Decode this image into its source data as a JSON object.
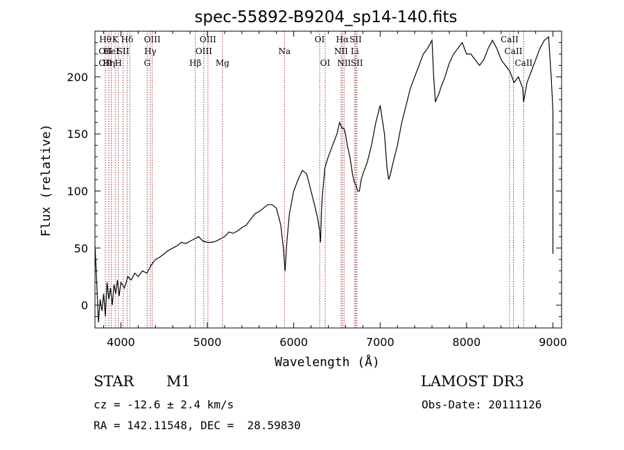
{
  "chart_data": {
    "type": "line",
    "title": "spec-55892-B9204_sp14-140.fits",
    "xlabel": "Wavelength (Å)",
    "ylabel": "Flux (relative)",
    "xlim": [
      3700,
      9100
    ],
    "ylim": [
      -20,
      240
    ],
    "xticks": [
      4000,
      5000,
      6000,
      7000,
      8000,
      9000
    ],
    "xtick_labels": [
      "4000",
      "5000",
      "6000",
      "7000",
      "8000",
      "9000"
    ],
    "yticks": [
      0,
      50,
      100,
      150,
      200
    ],
    "ytick_labels": [
      "0",
      "50",
      "100",
      "150",
      "200"
    ],
    "series": [
      {
        "name": "flux",
        "color": "#000000",
        "x": [
          3700,
          3720,
          3740,
          3760,
          3780,
          3800,
          3820,
          3840,
          3860,
          3880,
          3900,
          3920,
          3940,
          3960,
          3980,
          4000,
          4040,
          4080,
          4120,
          4160,
          4200,
          4250,
          4300,
          4350,
          4400,
          4450,
          4500,
          4550,
          4600,
          4650,
          4700,
          4750,
          4800,
          4850,
          4900,
          4950,
          5000,
          5050,
          5100,
          5150,
          5200,
          5250,
          5300,
          5350,
          5400,
          5450,
          5500,
          5550,
          5600,
          5650,
          5700,
          5750,
          5800,
          5850,
          5880,
          5900,
          5920,
          5950,
          6000,
          6050,
          6100,
          6150,
          6200,
          6250,
          6280,
          6300,
          6310,
          6320,
          6330,
          6360,
          6400,
          6450,
          6500,
          6530,
          6560,
          6580,
          6600,
          6620,
          6650,
          6680,
          6700,
          6720,
          6740,
          6760,
          6780,
          6800,
          6850,
          6900,
          6950,
          7000,
          7050,
          7080,
          7100,
          7120,
          7150,
          7200,
          7250,
          7300,
          7350,
          7400,
          7450,
          7500,
          7550,
          7600,
          7620,
          7640,
          7660,
          7680,
          7700,
          7750,
          7800,
          7850,
          7900,
          7950,
          8000,
          8050,
          8100,
          8150,
          8200,
          8250,
          8300,
          8350,
          8400,
          8450,
          8500,
          8550,
          8600,
          8650,
          8660,
          8700,
          8750,
          8800,
          8850,
          8900,
          8950,
          8980,
          9000,
          9000
        ],
        "y": [
          52,
          20,
          -15,
          5,
          -5,
          10,
          -10,
          20,
          5,
          15,
          0,
          18,
          10,
          22,
          8,
          20,
          15,
          25,
          22,
          28,
          25,
          30,
          28,
          35,
          40,
          42,
          45,
          48,
          50,
          52,
          55,
          54,
          56,
          58,
          60,
          56,
          55,
          55,
          56,
          58,
          60,
          64,
          63,
          65,
          68,
          70,
          75,
          80,
          82,
          85,
          88,
          88,
          85,
          70,
          50,
          30,
          55,
          80,
          100,
          110,
          118,
          115,
          100,
          85,
          75,
          65,
          55,
          80,
          95,
          120,
          130,
          140,
          150,
          160,
          155,
          155,
          150,
          140,
          130,
          115,
          108,
          105,
          100,
          100,
          110,
          115,
          125,
          140,
          160,
          175,
          150,
          120,
          110,
          115,
          125,
          140,
          160,
          175,
          190,
          200,
          210,
          220,
          225,
          232,
          200,
          178,
          182,
          185,
          190,
          200,
          212,
          220,
          225,
          230,
          220,
          220,
          215,
          210,
          215,
          225,
          232,
          225,
          215,
          210,
          205,
          195,
          200,
          190,
          178,
          195,
          205,
          215,
          225,
          232,
          235,
          200,
          170,
          45
        ]
      }
    ],
    "lines": [
      {
        "wavelength": 3820,
        "top": "Hθ",
        "mid": "OII",
        "low": "OII"
      },
      {
        "wavelength": 3860,
        "top": "",
        "mid": "",
        "low": "Hη"
      },
      {
        "wavelength": 3889,
        "top": "",
        "mid": "HeI",
        "low": ""
      },
      {
        "wavelength": 3934,
        "top": "K",
        "mid": "",
        "low": ""
      },
      {
        "wavelength": 3970,
        "top": "",
        "mid": "",
        "low": "H"
      },
      {
        "wavelength": 4026,
        "top": "",
        "mid": "SII",
        "low": ""
      },
      {
        "wavelength": 4072,
        "top": "Hδ",
        "mid": "",
        "low": ""
      },
      {
        "wavelength": 4102,
        "top": "",
        "mid": "",
        "low": ""
      },
      {
        "wavelength": 4304,
        "top": "",
        "mid": "",
        "low": "G"
      },
      {
        "wavelength": 4340,
        "top": "",
        "mid": "Hγ",
        "low": ""
      },
      {
        "wavelength": 4363,
        "top": "OIII",
        "mid": "",
        "low": ""
      },
      {
        "wavelength": 4861,
        "top": "",
        "mid": "",
        "low": "Hβ"
      },
      {
        "wavelength": 4959,
        "top": "",
        "mid": "OIII",
        "low": ""
      },
      {
        "wavelength": 5007,
        "top": "OIII",
        "mid": "",
        "low": ""
      },
      {
        "wavelength": 5175,
        "top": "",
        "mid": "",
        "low": "Mg"
      },
      {
        "wavelength": 5893,
        "top": "",
        "mid": "Na",
        "low": ""
      },
      {
        "wavelength": 6300,
        "top": "OI",
        "mid": "",
        "low": ""
      },
      {
        "wavelength": 6364,
        "top": "",
        "mid": "",
        "low": "OI"
      },
      {
        "wavelength": 6548,
        "top": "",
        "mid": "NII",
        "low": ""
      },
      {
        "wavelength": 6563,
        "top": "Hα",
        "mid": "",
        "low": ""
      },
      {
        "wavelength": 6583,
        "top": "",
        "mid": "",
        "low": "NII"
      },
      {
        "wavelength": 6707,
        "top": "",
        "mid": "Li",
        "low": ""
      },
      {
        "wavelength": 6716,
        "top": "SII",
        "mid": "",
        "low": ""
      },
      {
        "wavelength": 6731,
        "top": "",
        "mid": "",
        "low": "SII"
      },
      {
        "wavelength": 8498,
        "top": "CaII",
        "mid": "",
        "low": ""
      },
      {
        "wavelength": 8542,
        "top": "",
        "mid": "CaII",
        "low": ""
      },
      {
        "wavelength": 8662,
        "top": "",
        "mid": "",
        "low": "CaII"
      }
    ]
  },
  "info": {
    "object_class": "STAR",
    "subclass": "M1",
    "survey": "LAMOST DR3",
    "redshift": "cz = -12.6 ± 2.4 km/s",
    "obs_date": "Obs-Date: 20111126",
    "coords": "RA = 142.11548, DEC =  28.59830"
  },
  "colors": {
    "line_marker": "#8b1a1a",
    "spectrum": "#000000"
  }
}
